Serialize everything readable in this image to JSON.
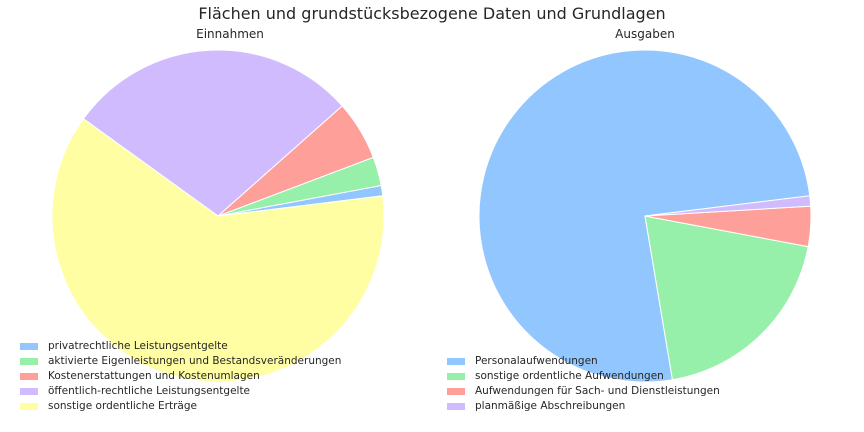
{
  "figure": {
    "title": "Flächen und grundstücksbezogene Daten und Grundlagen"
  },
  "chart_data": [
    {
      "type": "pie",
      "title": "Einnahmen",
      "legend_position": "lower-left",
      "start_angle_deg": 7,
      "direction": "counterclockwise",
      "labels": [
        "privatrechtliche Leistungsentgelte",
        "aktivierte Eigenleistungen und Bestandsveränderungen",
        "Kostenerstattungen und Kostenumlagen",
        "öffentlich-rechtliche Leistungsentgelte",
        "sonstige ordentliche Erträge"
      ],
      "values": [
        1.0,
        2.8,
        5.8,
        28.5,
        61.9
      ],
      "colors": [
        "#92c6ff",
        "#97f0aa",
        "#ff9f9a",
        "#d0bbff",
        "#fffea3"
      ]
    },
    {
      "type": "pie",
      "title": "Ausgaben",
      "legend_position": "lower-left",
      "start_angle_deg": 7,
      "direction": "counterclockwise",
      "labels": [
        "Personalaufwendungen",
        "sonstige ordentliche Aufwendungen",
        "Aufwendungen für Sach- und Dienstleistungen",
        "planmäßige Abschreibungen"
      ],
      "values": [
        75.7,
        19.4,
        3.9,
        1.0
      ],
      "colors": [
        "#92c6ff",
        "#97f0aa",
        "#ff9f9a",
        "#d0bbff"
      ]
    }
  ]
}
